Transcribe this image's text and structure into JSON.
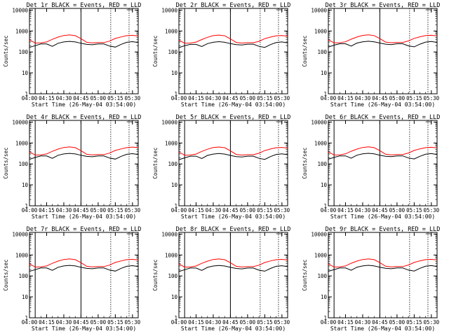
{
  "chart_data": {
    "type": "line",
    "ylabel": "Counts/sec",
    "xlabel": "Start Time (26-May-04 03:54:00)",
    "y_scale": "log",
    "ylim": [
      1,
      12000
    ],
    "y_ticks": [
      1,
      10,
      100,
      1000,
      10000
    ],
    "y_tick_labels": [
      "1",
      "10",
      "100",
      "1000",
      "10000"
    ],
    "x_range": [
      "04:00",
      "05:35"
    ],
    "x_ticks": [
      "04:00",
      "04:15",
      "04:30",
      "04:45",
      "05:00",
      "05:15",
      "05:30"
    ],
    "series_colors": {
      "events": "#000000",
      "lld": "#ff0000"
    },
    "marker_lines": [
      {
        "time": "04:05",
        "style": "solid"
      },
      {
        "time": "04:45",
        "style": "solid"
      },
      {
        "time": "05:11",
        "style": "dotted"
      },
      {
        "time": "05:27",
        "style": "dotted"
      }
    ],
    "x": [
      "04:00",
      "04:05",
      "04:10",
      "04:15",
      "04:20",
      "04:25",
      "04:30",
      "04:35",
      "04:40",
      "04:45",
      "04:50",
      "04:55",
      "05:00",
      "05:05",
      "05:10",
      "05:15",
      "05:20",
      "05:25",
      "05:30",
      "05:35"
    ],
    "panels": [
      {
        "title": "Det 1r BLACK = Events, RED = LLD",
        "events": [
          165,
          200,
          240,
          240,
          185,
          260,
          300,
          320,
          300,
          260,
          230,
          220,
          240,
          240,
          190,
          170,
          230,
          290,
          310,
          280
        ],
        "lld": [
          380,
          265,
          270,
          300,
          400,
          510,
          610,
          650,
          600,
          430,
          290,
          270,
          280,
          280,
          330,
          440,
          520,
          600,
          620,
          580
        ]
      },
      {
        "title": "Det 2r BLACK = Events, RED = LLD",
        "events": [
          160,
          200,
          230,
          230,
          180,
          250,
          290,
          310,
          290,
          250,
          225,
          215,
          235,
          235,
          185,
          165,
          225,
          280,
          300,
          270
        ],
        "lld": [
          370,
          260,
          265,
          295,
          390,
          500,
          600,
          640,
          590,
          420,
          285,
          265,
          275,
          275,
          320,
          430,
          510,
          590,
          610,
          570
        ]
      },
      {
        "title": "Det 3r BLACK = Events, RED = LLD",
        "events": [
          170,
          210,
          245,
          245,
          190,
          265,
          305,
          325,
          305,
          265,
          235,
          225,
          245,
          245,
          195,
          175,
          235,
          295,
          315,
          285
        ],
        "lld": [
          385,
          270,
          275,
          305,
          405,
          515,
          615,
          655,
          605,
          435,
          295,
          275,
          285,
          285,
          335,
          445,
          525,
          605,
          625,
          585
        ]
      },
      {
        "title": "Det 4r BLACK = Events, RED = LLD",
        "events": [
          165,
          205,
          240,
          240,
          185,
          260,
          300,
          320,
          300,
          260,
          230,
          220,
          240,
          240,
          190,
          170,
          230,
          290,
          310,
          280
        ],
        "lld": [
          380,
          265,
          270,
          300,
          400,
          510,
          610,
          650,
          600,
          430,
          290,
          270,
          280,
          280,
          330,
          440,
          520,
          600,
          640,
          600
        ]
      },
      {
        "title": "Det 5r BLACK = Events, RED = LLD",
        "events": [
          160,
          195,
          235,
          235,
          180,
          255,
          295,
          315,
          295,
          255,
          225,
          215,
          235,
          235,
          185,
          165,
          225,
          285,
          305,
          275
        ],
        "lld": [
          375,
          260,
          265,
          295,
          395,
          505,
          605,
          645,
          595,
          425,
          285,
          265,
          275,
          275,
          325,
          435,
          515,
          595,
          615,
          575
        ]
      },
      {
        "title": "Det 6r BLACK = Events, RED = LLD",
        "events": [
          168,
          205,
          242,
          242,
          188,
          262,
          302,
          322,
          302,
          262,
          232,
          222,
          242,
          242,
          192,
          172,
          232,
          292,
          312,
          282
        ],
        "lld": [
          382,
          268,
          272,
          302,
          402,
          512,
          612,
          652,
          602,
          432,
          292,
          272,
          282,
          282,
          332,
          442,
          522,
          602,
          622,
          582
        ]
      },
      {
        "title": "Det 7r BLACK = Events, RED = LLD",
        "events": [
          165,
          200,
          240,
          240,
          185,
          260,
          300,
          320,
          300,
          260,
          230,
          220,
          240,
          240,
          190,
          170,
          230,
          290,
          310,
          280
        ],
        "lld": [
          380,
          265,
          270,
          300,
          400,
          510,
          610,
          650,
          600,
          430,
          290,
          270,
          280,
          280,
          330,
          440,
          520,
          600,
          620,
          580
        ]
      },
      {
        "title": "Det 8r BLACK = Events, RED = LLD",
        "events": [
          162,
          198,
          238,
          238,
          183,
          258,
          298,
          318,
          298,
          258,
          228,
          218,
          238,
          238,
          188,
          168,
          228,
          288,
          308,
          278
        ],
        "lld": [
          378,
          263,
          268,
          298,
          398,
          508,
          608,
          648,
          598,
          428,
          288,
          268,
          278,
          278,
          328,
          438,
          518,
          598,
          618,
          578
        ]
      },
      {
        "title": "Det 9r BLACK = Events, RED = LLD",
        "events": [
          166,
          202,
          241,
          241,
          186,
          261,
          301,
          321,
          301,
          261,
          231,
          221,
          241,
          241,
          191,
          171,
          231,
          291,
          311,
          281
        ],
        "lld": [
          381,
          266,
          271,
          301,
          401,
          511,
          611,
          651,
          601,
          431,
          291,
          271,
          281,
          281,
          331,
          441,
          521,
          601,
          621,
          581
        ]
      }
    ]
  }
}
